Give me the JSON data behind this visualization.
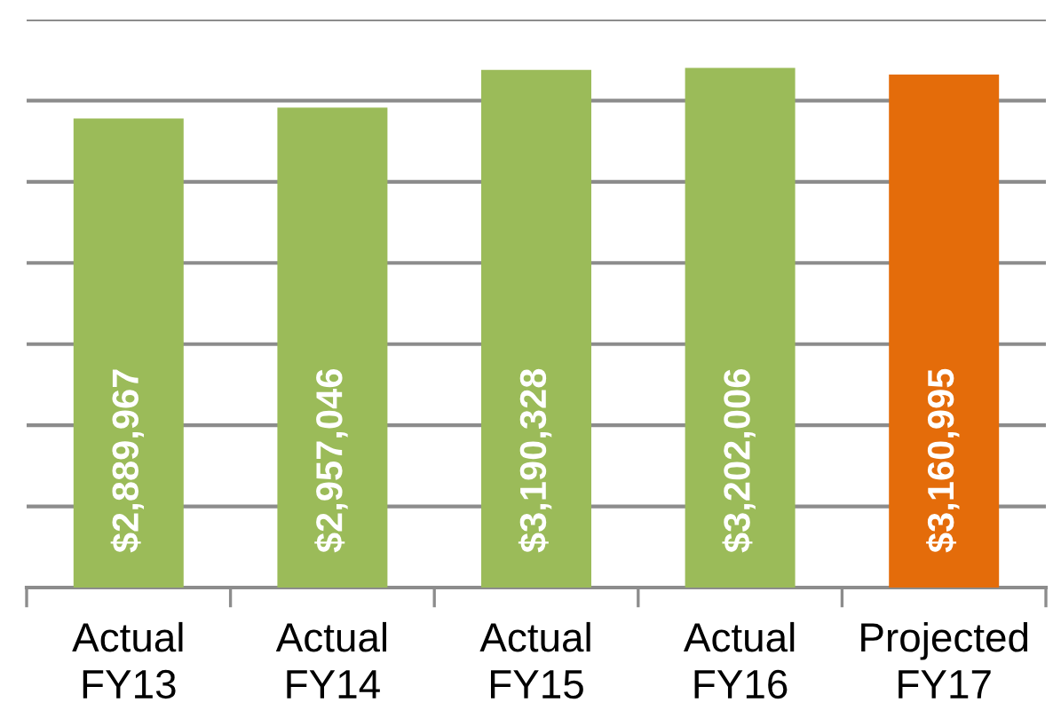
{
  "chart_data": {
    "type": "bar",
    "categories": [
      "Actual\nFY13",
      "Actual\nFY14",
      "Actual\nFY15",
      "Actual\nFY16",
      "Projected\nFY17"
    ],
    "values": [
      2889967,
      2957046,
      3190328,
      3202006,
      3160995
    ],
    "colors": [
      "#9bbb59",
      "#9bbb59",
      "#9bbb59",
      "#9bbb59",
      "#e46c0a"
    ],
    "value_labels": [
      "$2,889,967",
      "$2,957,046",
      "$3,190,328",
      "$3,202,006",
      "$3,160,995"
    ],
    "ylim": [
      0,
      3500000
    ],
    "yticks": [
      {
        "value": 0,
        "label": null
      },
      {
        "value": 500000,
        "label": null
      },
      {
        "value": 1000000,
        "label": null
      },
      {
        "value": 1500000,
        "label": null
      },
      {
        "value": 2000000,
        "label": null
      },
      {
        "value": 2500000,
        "label": null
      },
      {
        "value": 3000000,
        "label": null
      },
      {
        "value": 3500000,
        "label": null
      }
    ],
    "grid": "y"
  }
}
